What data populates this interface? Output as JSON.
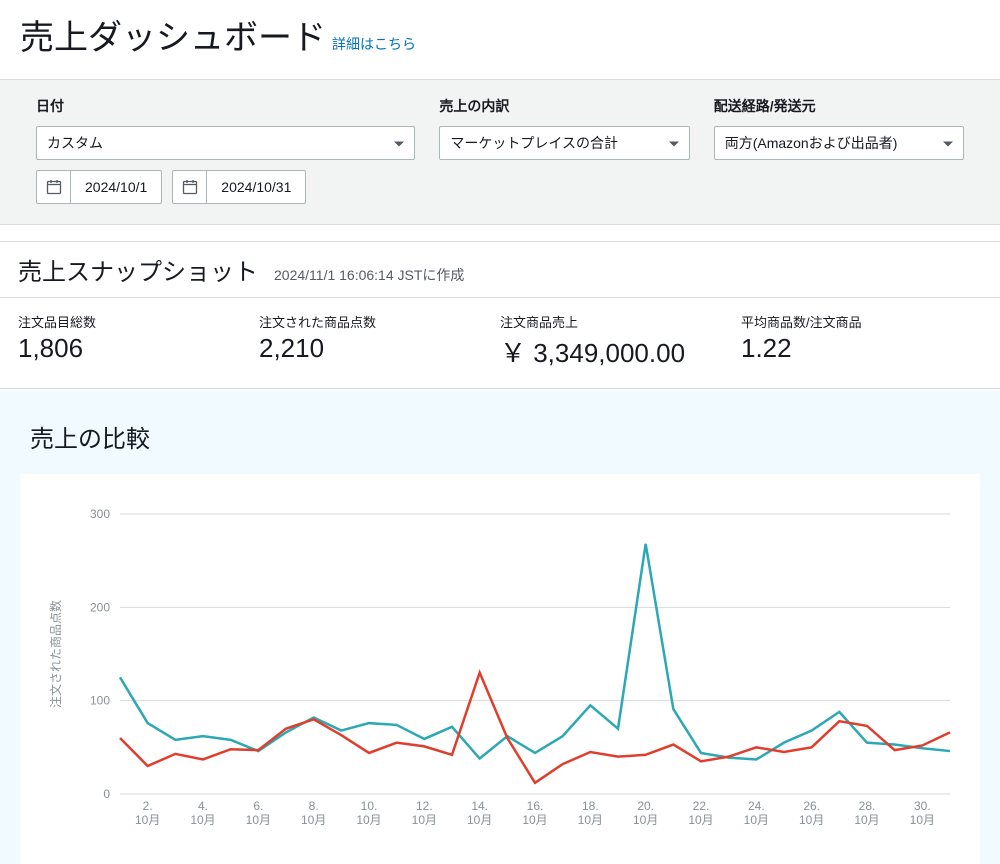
{
  "header": {
    "title": "売上ダッシュボード",
    "details_link": "詳細はこちら"
  },
  "filters": {
    "date": {
      "label": "日付",
      "preset_value": "カスタム",
      "from": "2024/10/1",
      "to": "2024/10/31"
    },
    "breakdown": {
      "label": "売上の内訳",
      "value": "マーケットプレイスの合計"
    },
    "channel": {
      "label": "配送経路/発送元",
      "value": "両方(Amazonおよび出品者)"
    }
  },
  "snapshot": {
    "title": "売上スナップショット",
    "timestamp": "2024/11/1 16:06:14 JSTに作成",
    "metrics": [
      {
        "label": "注文品目総数",
        "value": "1,806"
      },
      {
        "label": "注文された商品点数",
        "value": "2,210"
      },
      {
        "label": "注文商品売上",
        "value": "￥ 3,349,000.00"
      },
      {
        "label": "平均商品数/注文商品",
        "value": "1.22"
      }
    ]
  },
  "comparison": {
    "title": "売上の比較",
    "chart": {
      "type": "line",
      "y_axis_label": "注文された商品点数",
      "ylim": [
        0,
        300
      ],
      "ytick_step": 100,
      "gridline_color": "#d5dbdb",
      "background_color": "#ffffff",
      "tick_font_size": 12,
      "tick_color": "#879196",
      "line_width": 2.5,
      "x_labels": [
        "2. 10月",
        "4. 10月",
        "6. 10月",
        "8. 10月",
        "10. 10月",
        "12. 10月",
        "14. 10月",
        "16. 10月",
        "18. 10月",
        "20. 10月",
        "22. 10月",
        "24. 10月",
        "26. 10月",
        "28. 10月",
        "30. 10月"
      ],
      "x_points": 31,
      "series": [
        {
          "name": "series_a",
          "color": "#2ca8b4",
          "values": [
            125,
            76,
            58,
            62,
            58,
            46,
            66,
            82,
            68,
            76,
            74,
            59,
            72,
            38,
            62,
            44,
            62,
            95,
            70,
            268,
            91,
            44,
            39,
            37,
            55,
            68,
            88,
            55,
            53,
            49,
            46
          ]
        },
        {
          "name": "series_b",
          "color": "#e03e2d",
          "values": [
            60,
            30,
            43,
            37,
            48,
            47,
            70,
            80,
            63,
            44,
            55,
            51,
            42,
            130,
            60,
            12,
            32,
            45,
            40,
            42,
            53,
            35,
            40,
            50,
            45,
            50,
            78,
            73,
            47,
            52,
            66
          ]
        }
      ]
    }
  }
}
